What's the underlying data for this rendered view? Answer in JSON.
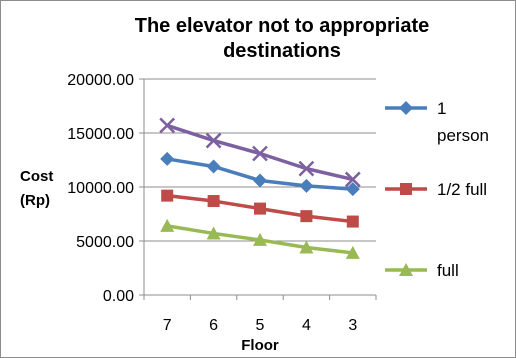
{
  "chart_data": {
    "type": "line",
    "title_lines": [
      "The elevator not to appropriate",
      "destinations"
    ],
    "xlabel": "Floor",
    "ylabel_lines": [
      "Cost",
      "(Rp)"
    ],
    "categories": [
      "7",
      "6",
      "5",
      "4",
      "3"
    ],
    "ylim": [
      0,
      20000
    ],
    "yticks": [
      "0.00",
      "5000.00",
      "10000.00",
      "15000.00",
      "20000.00"
    ],
    "grid": true,
    "legend_position": "right",
    "series": [
      {
        "name_lines": [
          "1",
          "person"
        ],
        "color": "#4a7ebb",
        "marker": "diamond",
        "values": [
          12600,
          11900,
          10600,
          10100,
          9800
        ]
      },
      {
        "name_lines": [
          "1/2 full"
        ],
        "color": "#be4b48",
        "marker": "square",
        "values": [
          9200,
          8700,
          8000,
          7300,
          6800
        ]
      },
      {
        "name_lines": [
          "full"
        ],
        "color": "#98b954",
        "marker": "triangle",
        "values": [
          6400,
          5700,
          5100,
          4400,
          3900
        ]
      },
      {
        "name_lines": [],
        "color": "#7d60a0",
        "marker": "x",
        "values": [
          15700,
          14300,
          13100,
          11700,
          10700
        ]
      }
    ]
  }
}
